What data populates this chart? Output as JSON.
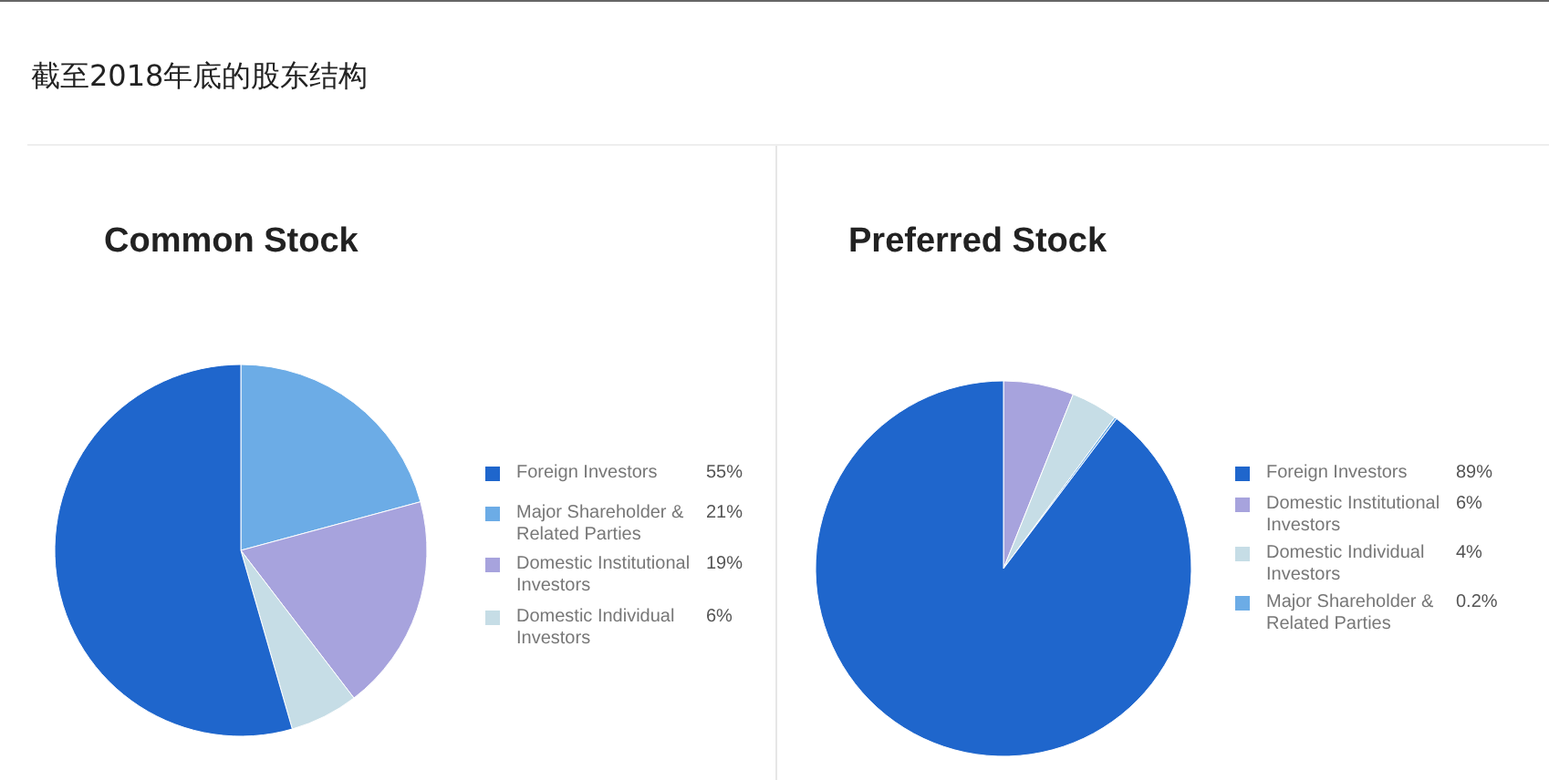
{
  "chart_data": [
    {
      "type": "pie",
      "title": "Common Stock",
      "annotations": [
        "截至2018年底的股东结构"
      ],
      "legend": "right",
      "categories": [
        "Foreign Investors",
        "Major Shareholder & Related Parties",
        "Domestic Institutional Investors",
        "Domestic Individual Investors"
      ],
      "values": [
        55,
        21,
        19,
        6
      ],
      "value_labels": [
        "55%",
        "21%",
        "19%",
        "6%"
      ],
      "colors": [
        "#1f66cc",
        "#6cace6",
        "#a7a3dd",
        "#c6dde6"
      ]
    },
    {
      "type": "pie",
      "title": "Preferred Stock",
      "legend": "right",
      "categories": [
        "Foreign Investors",
        "Domestic Institutional Investors",
        "Domestic Individual Investors",
        "Major Shareholder & Related Parties"
      ],
      "values": [
        89,
        6,
        4,
        0.2
      ],
      "value_labels": [
        "89%",
        "6%",
        "4%",
        "0.2%"
      ],
      "colors": [
        "#1f66cc",
        "#a7a3dd",
        "#c6dde6",
        "#6cace6"
      ]
    }
  ]
}
